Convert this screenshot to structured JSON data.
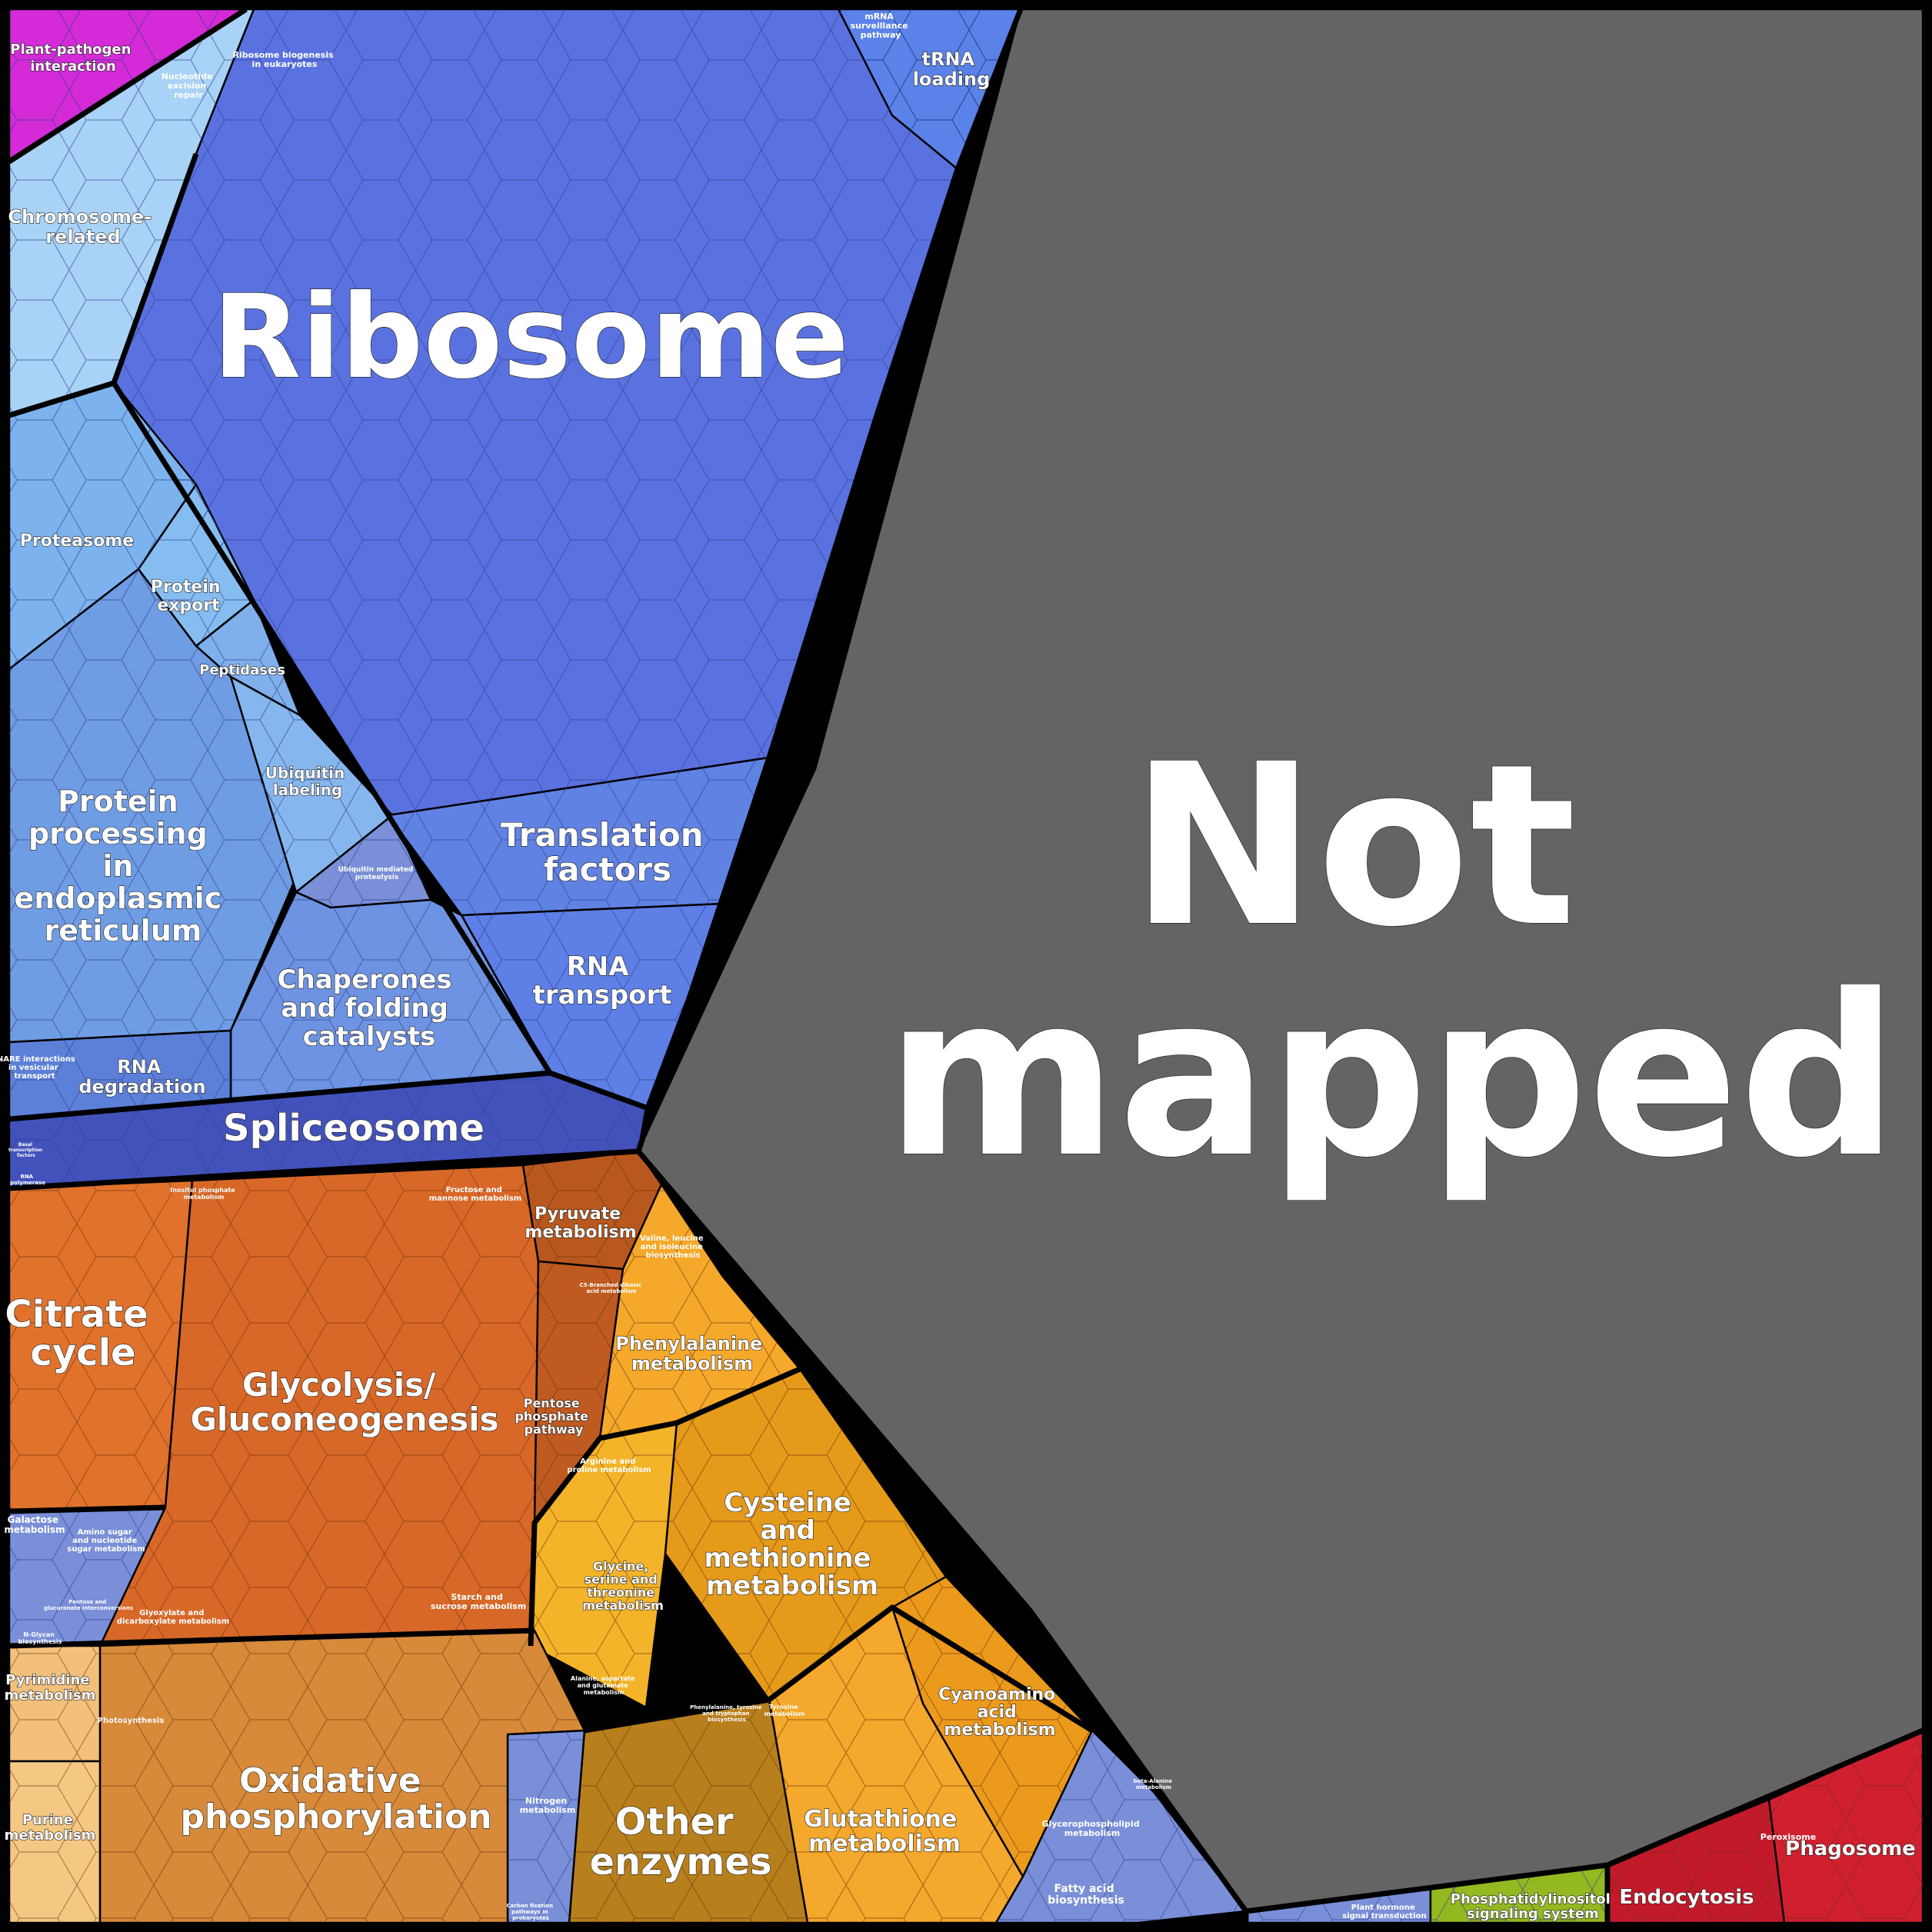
{
  "diagram": {
    "regions": [
      {
        "id": "not-mapped",
        "label": "Not mapped",
        "color": "#646464"
      },
      {
        "id": "ribosome",
        "label": "Ribosome",
        "color": "#5a72e0"
      },
      {
        "id": "plant-pathogen",
        "label": "Plant-pathogen interaction",
        "color": "#d52ad8"
      },
      {
        "id": "chromosome",
        "label": "Chromosome-related",
        "color": "#a9d3f6"
      },
      {
        "id": "proteasome",
        "label": "Proteasome",
        "color": "#7cb3ee"
      },
      {
        "id": "protein-export",
        "label": "Protein export",
        "color": "#86bdf0"
      },
      {
        "id": "peptidases",
        "label": "Peptidases",
        "color": "#7fb0ec"
      },
      {
        "id": "protein-processing",
        "label": "Protein processing in endoplasmic reticulum",
        "color": "#6f9de4"
      },
      {
        "id": "ubiquitin-labeling",
        "label": "Ubiquitin labeling",
        "color": "#86b6ee"
      },
      {
        "id": "chaperones",
        "label": "Chaperones and folding catalysts",
        "color": "#6d93e2"
      },
      {
        "id": "translation-factors",
        "label": "Translation factors",
        "color": "#5f82e3"
      },
      {
        "id": "rna-transport",
        "label": "RNA transport",
        "color": "#5d7fe6"
      },
      {
        "id": "rna-degradation",
        "label": "RNA degradation",
        "color": "#5c80d8"
      },
      {
        "id": "spliceosome",
        "label": "Spliceosome",
        "color": "#4352ba"
      },
      {
        "id": "trna-loading",
        "label": "tRNA loading",
        "color": "#5a82e8"
      },
      {
        "id": "citrate-cycle",
        "label": "Citrate cycle",
        "color": "#e0722c"
      },
      {
        "id": "glycolysis",
        "label": "Glycolysis/ Gluconeogenesis",
        "color": "#d86828"
      },
      {
        "id": "pyruvate",
        "label": "Pyruvate metabolism",
        "color": "#b8581e"
      },
      {
        "id": "pentose-phosphate",
        "label": "Pentose phosphate pathway",
        "color": "#bf5a20"
      },
      {
        "id": "phenylalanine",
        "label": "Phenylalanine metabolism",
        "color": "#f5a82a"
      },
      {
        "id": "cysteine",
        "label": "Cysteine and methionine metabolism",
        "color": "#e59a1a"
      },
      {
        "id": "glycine",
        "label": "Glycine, serine and threonine metabolism",
        "color": "#f4b42a"
      },
      {
        "id": "cyanoamino",
        "label": "Cyanoamino acid metabolism",
        "color": "#ec9a1c"
      },
      {
        "id": "glutathione",
        "label": "Glutathione metabolism",
        "color": "#f4a82c"
      },
      {
        "id": "other-enzymes",
        "label": "Other enzymes",
        "color": "#b8801c"
      },
      {
        "id": "oxidative",
        "label": "Oxidative phosphorylation",
        "color": "#d68a3a"
      },
      {
        "id": "pyrimidine",
        "label": "Pyrimidine metabolism",
        "color": "#f2c07a"
      },
      {
        "id": "purine",
        "label": "Purine metabolism",
        "color": "#f4c883"
      },
      {
        "id": "phosphatidylinositol",
        "label": "Phosphatidylinositol signaling system",
        "color": "#94b820"
      },
      {
        "id": "endocytosis",
        "label": "Endocytosis",
        "color": "#c21a2a"
      },
      {
        "id": "phagosome",
        "label": "Phagosome",
        "color": "#d02030"
      }
    ],
    "small_labels": {
      "mrna_surveillance": "mRNA surveillance pathway",
      "ribosome_biogenesis": "Ribosome biogenesis in eukaryotes",
      "nucleotide_excision": "Nucleotide excision repair",
      "ubiquitin_proteolysis": "Ubiquitin mediated proteolysis",
      "snare": "SNARE interactions in vesicular transport",
      "fructose_mannose": "Fructose and mannose metabolism",
      "inositol_phosphate": "Inositol phosphate metabolism",
      "valine_leucine": "Valine, leucine and isoleucine biosynthesis",
      "arginine_proline": "Arginine and proline metabolism",
      "galactose": "Galactose metabolism",
      "amino_sugar": "Amino sugar and nucleotide sugar metabolism",
      "glyoxylate": "Glyoxylate and dicarboxylate metabolism",
      "starch_sucrose": "Starch and sucrose metabolism",
      "photosynthesis": "Photosynthesis",
      "nitrogen": "Nitrogen metabolism",
      "glycerophospholipid": "Glycerophospholipid metabolism",
      "fatty_acid": "Fatty acid biosynthesis",
      "peroxisome": "Peroxisome",
      "plant_hormone": "Plant hormone signal transduction",
      "alanine_aspartate": "Alanine, aspartate and glutamate metabolism",
      "pentose_glucuronate": "Pentose and glucuronate interconversions",
      "n_glycan": "N-Glycan biosynthesis",
      "carbon_fixation": "Carbon fixation pathways in prokaryotes",
      "basal_transcription": "Basal transcription factors",
      "rna_polymerase": "RNA polymerase",
      "phenylpropanoid": "Phenylalanine, tyrosine and tryptophan biosynthesis",
      "c5_branched": "C5-Branched dibasic acid metabolism",
      "tyrosine": "Tyrosine metabolism",
      "beta_alanine": "beta-Alanine metabolism"
    }
  }
}
